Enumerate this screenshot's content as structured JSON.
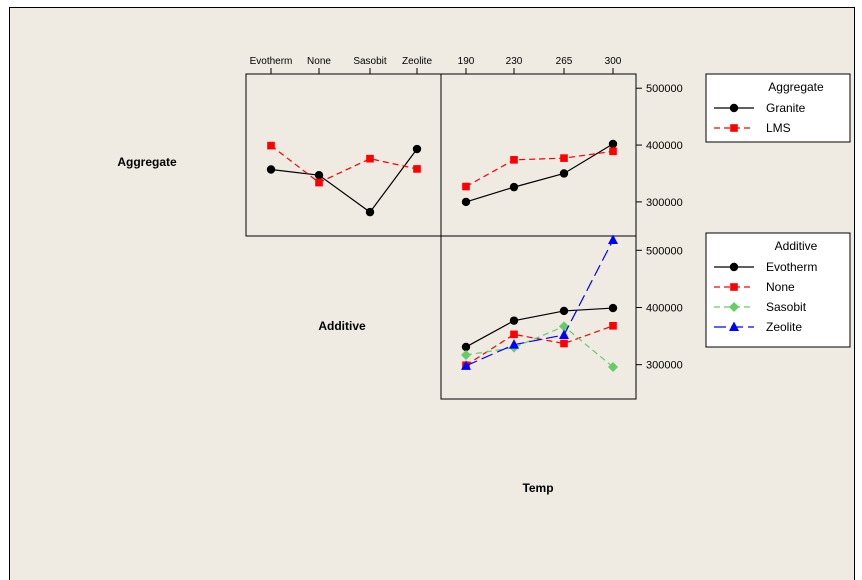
{
  "chart_data": {
    "type": "line",
    "title": "",
    "factors": [
      "Aggregate",
      "Additive",
      "Temp"
    ],
    "levels": {
      "Aggregate": [
        "Granite",
        "LMS"
      ],
      "Additive": [
        "Evotherm",
        "None",
        "Sasobit",
        "Zeolite"
      ],
      "Temp": [
        "190",
        "230",
        "265",
        "300"
      ]
    },
    "y_ticks": [
      "300000",
      "400000",
      "500000"
    ],
    "ylim": [
      240000,
      525000
    ],
    "panels": [
      {
        "id": "aggregate-by-additive",
        "row_factor": "Aggregate",
        "x_factor": "Additive",
        "categories": [
          "Evotherm",
          "None",
          "Sasobit",
          "Zeolite"
        ],
        "series": [
          {
            "name": "Granite",
            "color": "#000000",
            "marker": "circle",
            "dash": "solid",
            "values": [
              357000,
              347000,
              282000,
              393000
            ]
          },
          {
            "name": "LMS",
            "color": "#ff0000",
            "marker": "square",
            "dash": "dashed",
            "values": [
              399000,
              334000,
              376000,
              358000
            ]
          }
        ]
      },
      {
        "id": "aggregate-by-temp",
        "row_factor": "Aggregate",
        "x_factor": "Temp",
        "categories": [
          "190",
          "230",
          "265",
          "300"
        ],
        "series": [
          {
            "name": "Granite",
            "color": "#000000",
            "marker": "circle",
            "dash": "solid",
            "values": [
              300000,
              326000,
              350000,
              402000
            ]
          },
          {
            "name": "LMS",
            "color": "#ff0000",
            "marker": "square",
            "dash": "dashed",
            "values": [
              327000,
              374000,
              377000,
              389000
            ]
          }
        ]
      },
      {
        "id": "additive-by-temp",
        "row_factor": "Additive",
        "x_factor": "Temp",
        "categories": [
          "190",
          "230",
          "265",
          "300"
        ],
        "series": [
          {
            "name": "Evotherm",
            "color": "#000000",
            "marker": "circle",
            "dash": "solid",
            "values": [
              331000,
              377000,
              394000,
              399000
            ]
          },
          {
            "name": "None",
            "color": "#ff0000",
            "marker": "square",
            "dash": "dashed",
            "values": [
              299000,
              353000,
              337000,
              368000
            ]
          },
          {
            "name": "Sasobit",
            "color": "#66cc66",
            "marker": "diamond",
            "dash": "dashed",
            "values": [
              317000,
              330000,
              367000,
              296000
            ]
          },
          {
            "name": "Zeolite",
            "color": "#0000ff",
            "marker": "triangle",
            "dash": "longdash",
            "values": [
              298000,
              335000,
              352000,
              518000
            ]
          }
        ]
      }
    ],
    "legends": [
      {
        "title": "Aggregate",
        "items": [
          "Granite",
          "LMS"
        ]
      },
      {
        "title": "Additive",
        "items": [
          "Evotherm",
          "None",
          "Sasobit",
          "Zeolite"
        ]
      }
    ]
  }
}
